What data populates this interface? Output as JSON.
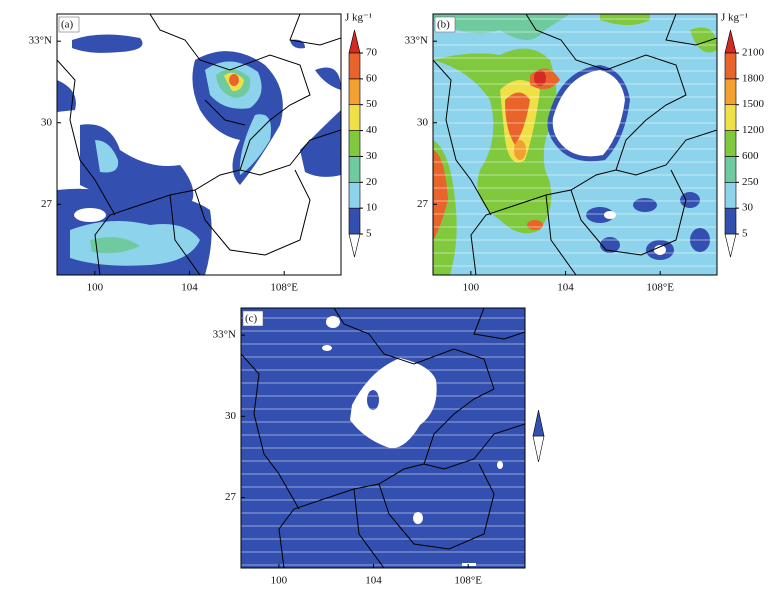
{
  "panels": [
    {
      "label": "(a)",
      "unit": "J  kg⁻¹",
      "xlim": [
        98.4,
        110.4
      ],
      "ylim": [
        24.4,
        34
      ],
      "xticks": [
        100,
        104,
        {
          "value": 108,
          "label": "108°E"
        }
      ],
      "yticks": [
        27,
        30,
        {
          "value": 33,
          "label": "33°N"
        }
      ],
      "colorbar": {
        "levels": [
          5,
          10,
          20,
          30,
          40,
          50,
          60,
          70
        ],
        "colors": [
          "#ffffff",
          "#3350b0",
          "#8dd3ec",
          "#6fcaa0",
          "#80c83c",
          "#f0e048",
          "#f2a030",
          "#e8642a",
          "#d42a24"
        ]
      }
    },
    {
      "label": "(b)",
      "unit": "J  kg⁻¹",
      "xlim": [
        98.4,
        110.4
      ],
      "ylim": [
        24.4,
        34
      ],
      "xticks": [
        100,
        104,
        {
          "value": 108,
          "label": "108°E"
        }
      ],
      "yticks": [
        27,
        30,
        {
          "value": 33,
          "label": "33°N"
        }
      ],
      "colorbar": {
        "levels": [
          5,
          30,
          250,
          600,
          1200,
          1500,
          1800,
          2100
        ],
        "colors": [
          "#ffffff",
          "#3350b0",
          "#8dd3ec",
          "#6fcaa0",
          "#80c83c",
          "#f0e048",
          "#f2a030",
          "#e8642a",
          "#d42a24"
        ]
      }
    },
    {
      "label": "(c)",
      "xlim": [
        98.4,
        110.4
      ],
      "ylim": [
        24.4,
        34
      ],
      "xticks": [
        100,
        104,
        {
          "value": 108,
          "label": "108°E"
        }
      ],
      "yticks": [
        27,
        30,
        {
          "value": 33,
          "label": "33°N"
        }
      ],
      "colorbar": {
        "colors": [
          "#ffffff",
          "#3350b0"
        ]
      }
    }
  ]
}
